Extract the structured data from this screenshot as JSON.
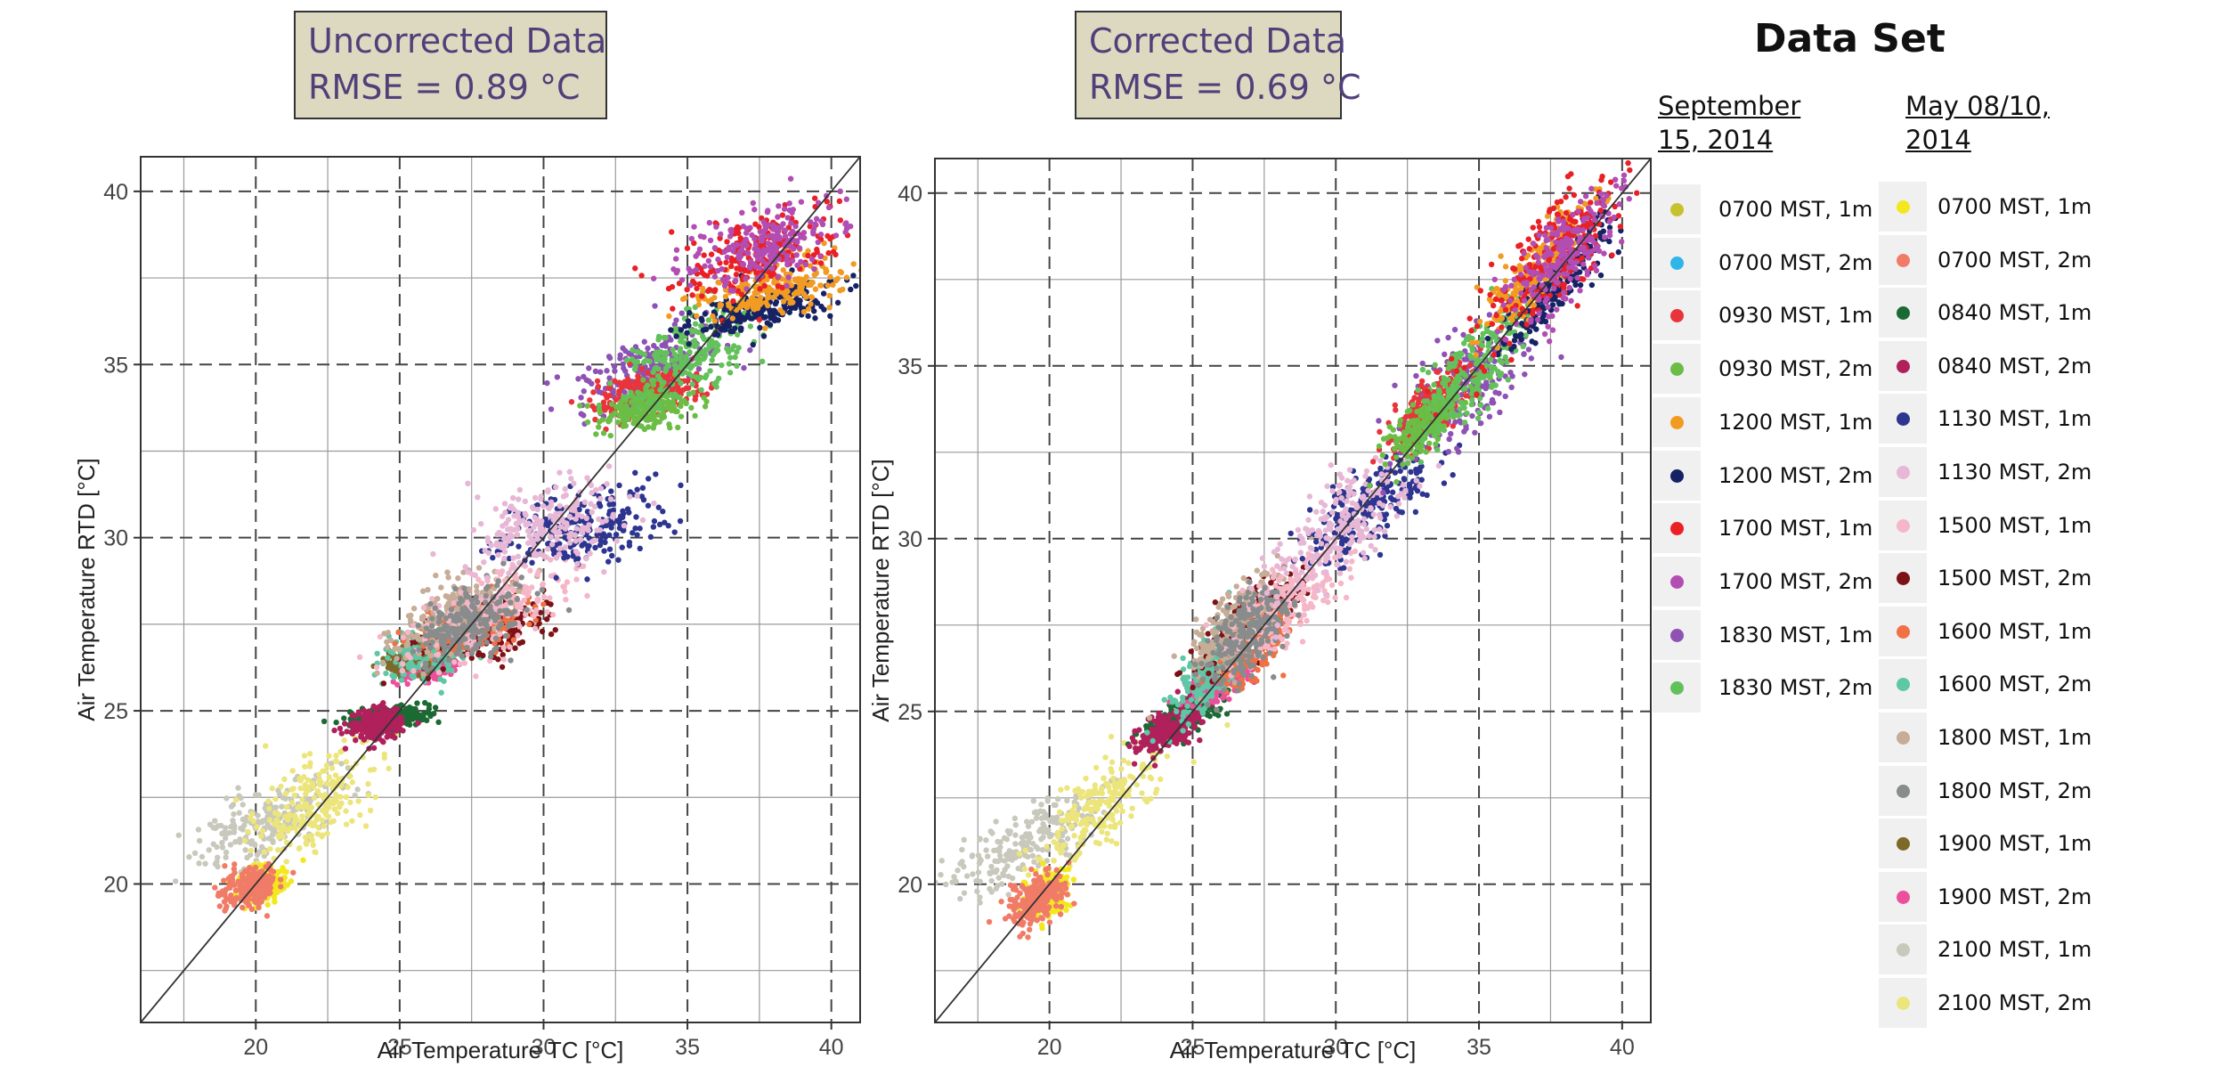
{
  "legend": {
    "heading": "Data Set",
    "columns": [
      {
        "heading": "September 15, 2014",
        "items": [
          {
            "label": "0700 MST, 1m",
            "color": "#c6c12e"
          },
          {
            "label": "0700 MST, 2m",
            "color": "#2fb5ea"
          },
          {
            "label": "0930 MST, 1m",
            "color": "#e8343a"
          },
          {
            "label": "0930 MST, 2m",
            "color": "#6bbd45"
          },
          {
            "label": "1200 MST, 1m",
            "color": "#f29b22"
          },
          {
            "label": "1200 MST, 2m",
            "color": "#162264"
          },
          {
            "label": "1700 MST, 1m",
            "color": "#ea2027"
          },
          {
            "label": "1700 MST, 2m",
            "color": "#b24db3"
          },
          {
            "label": "1830 MST, 1m",
            "color": "#8e52b5"
          },
          {
            "label": "1830 MST, 2m",
            "color": "#63c15b"
          }
        ]
      },
      {
        "heading": "May 08/10, 2014",
        "items": [
          {
            "label": "0700 MST, 1m",
            "color": "#f3e81e"
          },
          {
            "label": "0700 MST, 2m",
            "color": "#f07c68"
          },
          {
            "label": "0840 MST, 1m",
            "color": "#1b6a34"
          },
          {
            "label": "0840 MST, 2m",
            "color": "#b0205b"
          },
          {
            "label": "1130 MST, 1m",
            "color": "#2e3590"
          },
          {
            "label": "1130 MST, 2m",
            "color": "#e7b7d6"
          },
          {
            "label": "1500 MST, 1m",
            "color": "#f5b7c8"
          },
          {
            "label": "1500 MST, 2m",
            "color": "#7d1115"
          },
          {
            "label": "1600 MST, 1m",
            "color": "#ef7145"
          },
          {
            "label": "1600 MST, 2m",
            "color": "#5ec7a6"
          },
          {
            "label": "1800 MST, 1m",
            "color": "#c7ac97"
          },
          {
            "label": "1800 MST, 2m",
            "color": "#888c8c"
          },
          {
            "label": "1900 MST, 1m",
            "color": "#7d6a2a"
          },
          {
            "label": "1900 MST, 2m",
            "color": "#ec4f9c"
          },
          {
            "label": "2100 MST, 1m",
            "color": "#c8c8bc"
          },
          {
            "label": "2100 MST, 2m",
            "color": "#ece57c"
          }
        ]
      }
    ]
  },
  "chart_data": [
    {
      "type": "scatter",
      "title_line1": "Uncorrected Data",
      "title_line2": "RMSE =  0.89 °C",
      "xlabel": "Air Temperature TC [°C]",
      "ylabel": "Air Temperature RTD [°C]",
      "xlim": [
        16,
        41
      ],
      "ylim": [
        16,
        41
      ],
      "xticks": [
        20,
        25,
        30,
        35,
        40
      ],
      "yticks": [
        20,
        25,
        30,
        35,
        40
      ],
      "grid": true,
      "reference_line": "1:1",
      "clusters": [
        {
          "series": "May 2100 MST, 1m",
          "color": "#c8c8bc",
          "x": 20.5,
          "y": 21.8,
          "sx": 1.4,
          "sy": 0.45,
          "rot": 20
        },
        {
          "series": "May 2100 MST, 2m",
          "color": "#ece57c",
          "x": 22.0,
          "y": 22.3,
          "sx": 1.2,
          "sy": 0.55,
          "rot": 30
        },
        {
          "series": "May 0700 MST, 1m",
          "color": "#f3e81e",
          "x": 20.2,
          "y": 20.0,
          "sx": 0.45,
          "sy": 0.25,
          "rot": 10
        },
        {
          "series": "May 0700 MST, 2m",
          "color": "#f07c68",
          "x": 19.8,
          "y": 19.9,
          "sx": 0.5,
          "sy": 0.3,
          "rot": 10
        },
        {
          "series": "May 0840 MST, 1m",
          "color": "#1b6a34",
          "x": 24.6,
          "y": 24.8,
          "sx": 0.7,
          "sy": 0.15,
          "rot": 5
        },
        {
          "series": "May 0840 MST, 2m",
          "color": "#b0205b",
          "x": 24.2,
          "y": 24.6,
          "sx": 0.5,
          "sy": 0.25,
          "rot": 10
        },
        {
          "series": "May 1900 MST, 2m",
          "color": "#ec4f9c",
          "x": 26.0,
          "y": 26.3,
          "sx": 0.55,
          "sy": 0.2,
          "rot": 5
        },
        {
          "series": "May 1900 MST, 1m",
          "color": "#7d6a2a",
          "x": 25.5,
          "y": 26.5,
          "sx": 0.5,
          "sy": 0.2,
          "rot": 5
        },
        {
          "series": "May 1600 MST, 2m",
          "color": "#5ec7a6",
          "x": 26.2,
          "y": 26.8,
          "sx": 1.0,
          "sy": 0.35,
          "rot": 20
        },
        {
          "series": "May 1500 MST, 2m",
          "color": "#7d1115",
          "x": 28.0,
          "y": 27.3,
          "sx": 1.3,
          "sy": 0.4,
          "rot": 15
        },
        {
          "series": "May 1600 MST, 1m",
          "color": "#ef7145",
          "x": 27.5,
          "y": 27.5,
          "sx": 1.0,
          "sy": 0.35,
          "rot": 15
        },
        {
          "series": "May 1800 MST, 1m",
          "color": "#c7ac97",
          "x": 26.8,
          "y": 27.8,
          "sx": 1.2,
          "sy": 0.45,
          "rot": 25
        },
        {
          "series": "May 1500 MST, 1m",
          "color": "#f5b7c8",
          "x": 28.2,
          "y": 28.0,
          "sx": 1.5,
          "sy": 0.55,
          "rot": 20
        },
        {
          "series": "May 1800 MST, 2m",
          "color": "#888c8c",
          "x": 27.4,
          "y": 27.5,
          "sx": 0.9,
          "sy": 0.45,
          "rot": 25
        },
        {
          "series": "May 1130 MST, 1m",
          "color": "#2e3590",
          "x": 31.5,
          "y": 30.3,
          "sx": 1.5,
          "sy": 0.55,
          "rot": 10
        },
        {
          "series": "May 1130 MST, 2m",
          "color": "#e7b7d6",
          "x": 30.2,
          "y": 30.4,
          "sx": 1.4,
          "sy": 0.6,
          "rot": 15
        },
        {
          "series": "Sep 1830 MST, 1m",
          "color": "#8e52b5",
          "x": 33.5,
          "y": 34.8,
          "sx": 1.3,
          "sy": 0.5,
          "rot": 20
        },
        {
          "series": "Sep 0930 MST, 1m",
          "color": "#e8343a",
          "x": 33.5,
          "y": 34.2,
          "sx": 1.0,
          "sy": 0.3,
          "rot": 10
        },
        {
          "series": "Sep 0930 MST, 2m",
          "color": "#6bbd45",
          "x": 33.5,
          "y": 33.7,
          "sx": 0.8,
          "sy": 0.25,
          "rot": 10
        },
        {
          "series": "Sep 1830 MST, 2m",
          "color": "#63c15b",
          "x": 35.0,
          "y": 35.3,
          "sx": 1.3,
          "sy": 0.55,
          "rot": 25
        },
        {
          "series": "Sep 1200 MST, 2m",
          "color": "#162264",
          "x": 37.5,
          "y": 36.6,
          "sx": 1.3,
          "sy": 0.3,
          "rot": 10
        },
        {
          "series": "Sep 1200 MST, 1m",
          "color": "#f29b22",
          "x": 38.0,
          "y": 37.2,
          "sx": 1.4,
          "sy": 0.35,
          "rot": 10
        },
        {
          "series": "Sep 1700 MST, 1m",
          "color": "#ea2027",
          "x": 37.5,
          "y": 38.2,
          "sx": 1.6,
          "sy": 0.55,
          "rot": 15
        },
        {
          "series": "Sep 1700 MST, 2m",
          "color": "#b24db3",
          "x": 37.6,
          "y": 38.4,
          "sx": 1.3,
          "sy": 0.5,
          "rot": 15
        }
      ]
    },
    {
      "type": "scatter",
      "title_line1": "Corrected Data",
      "title_line2": "RMSE = 0.69 °C",
      "xlabel": "Air Temperature TC [°C]",
      "ylabel": "Air Temperature RTD [°C]",
      "xlim": [
        16,
        41
      ],
      "ylim": [
        16,
        41
      ],
      "xticks": [
        20,
        25,
        30,
        35,
        40
      ],
      "yticks": [
        20,
        25,
        30,
        35,
        40
      ],
      "grid": true,
      "reference_line": "1:1",
      "clusters": [
        {
          "series": "May 2100 MST, 1m",
          "color": "#c8c8bc",
          "x": 19.3,
          "y": 21.2,
          "sx": 1.5,
          "sy": 0.45,
          "rot": 25
        },
        {
          "series": "May 2100 MST, 2m",
          "color": "#ece57c",
          "x": 21.8,
          "y": 22.2,
          "sx": 1.3,
          "sy": 0.5,
          "rot": 40
        },
        {
          "series": "May 0700 MST, 1m",
          "color": "#f3e81e",
          "x": 19.9,
          "y": 19.7,
          "sx": 0.4,
          "sy": 0.3,
          "rot": 30
        },
        {
          "series": "May 0700 MST, 2m",
          "color": "#f07c68",
          "x": 19.6,
          "y": 19.6,
          "sx": 0.5,
          "sy": 0.3,
          "rot": 30
        },
        {
          "series": "May 0840 MST, 1m",
          "color": "#1b6a34",
          "x": 24.6,
          "y": 24.8,
          "sx": 0.7,
          "sy": 0.2,
          "rot": 20
        },
        {
          "series": "May 0840 MST, 2m",
          "color": "#b0205b",
          "x": 24.2,
          "y": 24.5,
          "sx": 0.6,
          "sy": 0.25,
          "rot": 25
        },
        {
          "series": "May 1900 MST, 2m",
          "color": "#ec4f9c",
          "x": 25.8,
          "y": 25.9,
          "sx": 0.6,
          "sy": 0.3,
          "rot": 30
        },
        {
          "series": "May 1600 MST, 2m",
          "color": "#5ec7a6",
          "x": 25.7,
          "y": 26.2,
          "sx": 0.9,
          "sy": 0.35,
          "rot": 45
        },
        {
          "series": "May 1500 MST, 2m",
          "color": "#7d1115",
          "x": 27.0,
          "y": 27.6,
          "sx": 1.1,
          "sy": 0.4,
          "rot": 35
        },
        {
          "series": "May 1600 MST, 1m",
          "color": "#ef7145",
          "x": 27.2,
          "y": 26.8,
          "sx": 0.8,
          "sy": 0.35,
          "rot": 40
        },
        {
          "series": "May 1800 MST, 1m",
          "color": "#c7ac97",
          "x": 26.5,
          "y": 27.5,
          "sx": 1.0,
          "sy": 0.4,
          "rot": 40
        },
        {
          "series": "May 1500 MST, 1m",
          "color": "#f5b7c8",
          "x": 28.3,
          "y": 28.2,
          "sx": 1.2,
          "sy": 0.45,
          "rot": 40
        },
        {
          "series": "May 1800 MST, 2m",
          "color": "#888c8c",
          "x": 26.9,
          "y": 27.2,
          "sx": 0.9,
          "sy": 0.45,
          "rot": 45
        },
        {
          "series": "May 1130 MST, 1m",
          "color": "#2e3590",
          "x": 31.2,
          "y": 31.0,
          "sx": 1.3,
          "sy": 0.5,
          "rot": 35
        },
        {
          "series": "May 1130 MST, 2m",
          "color": "#e7b7d6",
          "x": 30.2,
          "y": 30.4,
          "sx": 1.4,
          "sy": 0.6,
          "rot": 40
        },
        {
          "series": "Sep 1830 MST, 1m",
          "color": "#8e52b5",
          "x": 34.5,
          "y": 34.5,
          "sx": 1.4,
          "sy": 0.6,
          "rot": 40
        },
        {
          "series": "Sep 0930 MST, 1m",
          "color": "#e8343a",
          "x": 33.3,
          "y": 33.8,
          "sx": 0.8,
          "sy": 0.35,
          "rot": 40
        },
        {
          "series": "Sep 0930 MST, 2m",
          "color": "#6bbd45",
          "x": 33.2,
          "y": 33.4,
          "sx": 0.8,
          "sy": 0.3,
          "rot": 40
        },
        {
          "series": "Sep 1830 MST, 2m",
          "color": "#63c15b",
          "x": 34.9,
          "y": 35.0,
          "sx": 1.4,
          "sy": 0.5,
          "rot": 45
        },
        {
          "series": "Sep 1200 MST, 2m",
          "color": "#162264",
          "x": 37.8,
          "y": 37.5,
          "sx": 1.3,
          "sy": 0.35,
          "rot": 45
        },
        {
          "series": "Sep 1200 MST, 1m",
          "color": "#f29b22",
          "x": 37.0,
          "y": 37.8,
          "sx": 1.3,
          "sy": 0.4,
          "rot": 45
        },
        {
          "series": "Sep 1700 MST, 1m",
          "color": "#ea2027",
          "x": 37.6,
          "y": 38.0,
          "sx": 1.7,
          "sy": 0.6,
          "rot": 45
        },
        {
          "series": "Sep 1700 MST, 2m",
          "color": "#b24db3",
          "x": 38.0,
          "y": 38.2,
          "sx": 1.3,
          "sy": 0.5,
          "rot": 45
        }
      ]
    }
  ]
}
